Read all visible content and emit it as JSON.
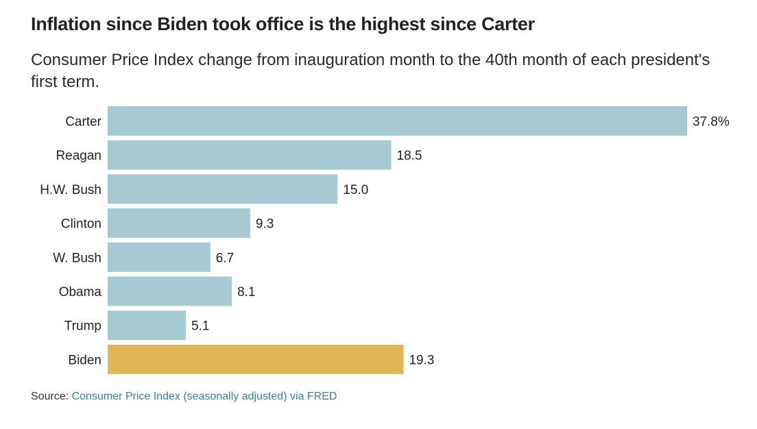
{
  "header": {
    "title": "Inflation since Biden took office is the highest since Carter",
    "subtitle": "Consumer Price Index change from inauguration month to the 40th month of each president's first term."
  },
  "chart_data": {
    "type": "bar",
    "orientation": "horizontal",
    "title": "Inflation since Biden took office is the highest since Carter",
    "subtitle": "Consumer Price Index change from inauguration month to the 40th month of each president's first term.",
    "xlabel": "",
    "ylabel": "",
    "unit": "%",
    "categories": [
      "Carter",
      "Reagan",
      "H.W. Bush",
      "Clinton",
      "W. Bush",
      "Obama",
      "Trump",
      "Biden"
    ],
    "values": [
      37.8,
      18.5,
      15.0,
      9.3,
      6.7,
      8.1,
      5.1,
      19.3
    ],
    "value_labels": [
      "37.8%",
      "18.5",
      "15.0",
      "9.3",
      "6.7",
      "8.1",
      "5.1",
      "19.3"
    ],
    "highlight": "Biden",
    "colors": {
      "default": "#a7cad2",
      "highlight": "#e1b656"
    },
    "xlim": [
      0,
      37.8
    ],
    "grid": false,
    "legend": "none"
  },
  "source": {
    "prefix": "Source:",
    "link_text": "Consumer Price Index (seasonally adjusted) via FRED"
  }
}
